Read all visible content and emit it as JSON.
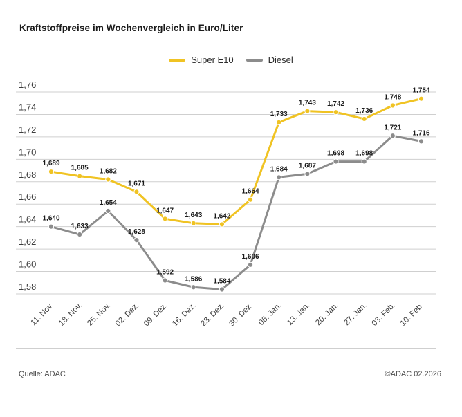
{
  "page": {
    "title": "Kraftstoffpreise im Wochenvergleich in Euro/Liter"
  },
  "footer": {
    "source": "Quelle: ADAC",
    "copyright": "©ADAC 02.2026"
  },
  "colors": {
    "super_e10": "#F0C323",
    "diesel": "#8C8C8C",
    "grid": "#CFCFCF",
    "text_dark": "#1A1A1A",
    "axis_text": "#3D3D3D"
  },
  "chart_data": {
    "type": "line",
    "title": "Kraftstoffpreise im Wochenvergleich in Euro/Liter",
    "xlabel": "",
    "ylabel": "",
    "ylim": [
      1.58,
      1.76
    ],
    "grid": true,
    "legend_position": "top-center",
    "categories": [
      "11. Nov.",
      "18. Nov.",
      "25. Nov.",
      "02. Dez.",
      "09. Dez.",
      "16. Dez.",
      "23. Dez.",
      "30. Dez.",
      "06. Jan.",
      "13. Jan.",
      "20. Jan.",
      "27. Jan.",
      "03. Feb.",
      "10. Feb."
    ],
    "yticks": [
      {
        "value": 1.58,
        "label": "1,58"
      },
      {
        "value": 1.6,
        "label": "1,60"
      },
      {
        "value": 1.62,
        "label": "1,62"
      },
      {
        "value": 1.64,
        "label": "1,64"
      },
      {
        "value": 1.66,
        "label": "1,66"
      },
      {
        "value": 1.68,
        "label": "1,68"
      },
      {
        "value": 1.7,
        "label": "1,70"
      },
      {
        "value": 1.72,
        "label": "1,72"
      },
      {
        "value": 1.74,
        "label": "1,74"
      },
      {
        "value": 1.76,
        "label": "1,76"
      }
    ],
    "series": [
      {
        "name": "Super E10",
        "color": "#F0C323",
        "values": [
          1.689,
          1.685,
          1.682,
          1.671,
          1.647,
          1.643,
          1.642,
          1.664,
          1.733,
          1.743,
          1.742,
          1.736,
          1.748,
          1.754
        ],
        "point_labels": [
          "1,689",
          "1,685",
          "1,682",
          "1,671",
          "1,647",
          "1,643",
          "1,642",
          "1,664",
          "1,733",
          "1,743",
          "1,742",
          "1,736",
          "1,748",
          "1,754"
        ]
      },
      {
        "name": "Diesel",
        "color": "#8C8C8C",
        "values": [
          1.64,
          1.633,
          1.654,
          1.628,
          1.592,
          1.586,
          1.584,
          1.606,
          1.684,
          1.687,
          1.698,
          1.698,
          1.721,
          1.716
        ],
        "point_labels": [
          "1,640",
          "1,633",
          "1,654",
          "1,628",
          "1,592",
          "1,586",
          "1,584",
          "1,606",
          "1,684",
          "1,687",
          "1,698",
          "1,698",
          "1,721",
          "1,716"
        ]
      }
    ]
  }
}
